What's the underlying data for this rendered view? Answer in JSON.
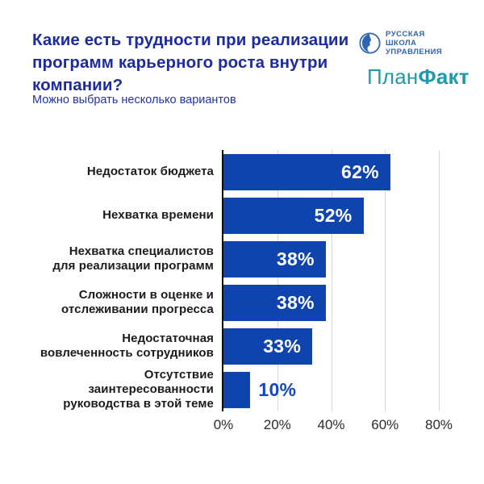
{
  "header": {
    "title": "Какие есть трудности при реализации программ карьерного роста внутри компании?",
    "subtitle": "Можно выбрать несколько вариантов"
  },
  "logos": {
    "rsu": {
      "line1": "РУССКАЯ",
      "line2": "ШКОЛА",
      "line3": "УПРАВЛЕНИЯ"
    },
    "planfact": {
      "part1": "План",
      "part2": "Факт"
    }
  },
  "chart_data": {
    "type": "bar",
    "orientation": "horizontal",
    "title": "Какие есть трудности при реализации программ карьерного роста внутри компании?",
    "subtitle": "Можно выбрать несколько вариантов",
    "categories": [
      "Недостаток бюджета",
      "Нехватка времени",
      "Нехватка специалистов\nдля реализации программ",
      "Сложности в оценке и\nотслеживании прогресса",
      "Недостаточная\nвовлеченность сотрудников",
      "Отсутствие\nзаинтересованности\nруководства в этой теме"
    ],
    "values": [
      62,
      52,
      38,
      38,
      33,
      10
    ],
    "value_labels": [
      "62%",
      "52%",
      "38%",
      "38%",
      "33%",
      "10%"
    ],
    "x_ticks": [
      "0%",
      "20%",
      "40%",
      "60%",
      "80%"
    ],
    "xlim": [
      0,
      80
    ],
    "grid": true,
    "legend": false,
    "bar_color": "#0f44ae",
    "value_label_color_inside": "#ffffff",
    "value_label_color_outside": "#1548bb"
  },
  "colors": {
    "title_navy": "#1c2b9e",
    "bar_blue": "#0f44ae",
    "planfact_teal": "#1f9aab",
    "rsu_blue": "#2e64b1",
    "gridline": "#d8d8d8",
    "axis_black": "#0a0a0a",
    "category_text": "#1b1b1b"
  }
}
